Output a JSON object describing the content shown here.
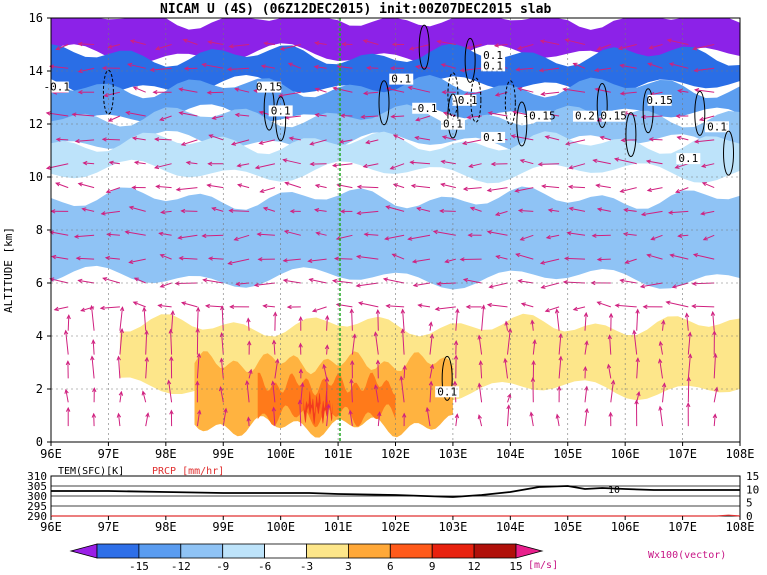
{
  "chart_data": [
    {
      "type": "heatmap",
      "title": "NICAM U (4S) (06Z12DEC2015) init:00Z07DEC2015 slab",
      "ylabel": "ALTITUDE [km]",
      "xlabel": "",
      "xlim": [
        96,
        108
      ],
      "ylim": [
        0,
        16
      ],
      "x_ticks": [
        "96E",
        "97E",
        "98E",
        "99E",
        "100E",
        "101E",
        "102E",
        "103E",
        "104E",
        "105E",
        "106E",
        "107E",
        "108E"
      ],
      "y_ticks": [
        "0",
        "2",
        "4",
        "6",
        "8",
        "10",
        "12",
        "14",
        "16"
      ],
      "grid": true,
      "reference_line_x": 101,
      "shading_bands": [
        {
          "z_top": 16.0,
          "z_bot": 14.6,
          "level": -15,
          "color": "#8c22e8"
        },
        {
          "z_top": 14.6,
          "z_bot": 13.4,
          "level": -12,
          "color": "#2a6ee6"
        },
        {
          "z_top": 13.4,
          "z_bot": 12.3,
          "level": -9,
          "color": "#5c9ef0"
        },
        {
          "z_top": 12.3,
          "z_bot": 11.3,
          "level": -6,
          "color": "#8fc3f5"
        },
        {
          "z_top": 11.3,
          "z_bot": 10.2,
          "level": -3,
          "color": "#bde3fa"
        },
        {
          "z_top": 9.2,
          "z_bot": 6.2,
          "level": -6,
          "color": "#8fc3f5"
        },
        {
          "z_top": 4.4,
          "z_bot": 2.0,
          "level": 3,
          "color": "#fde68a"
        },
        {
          "z_top": 3.0,
          "z_bot": 0.6,
          "level": 6,
          "color": "#ffb340"
        },
        {
          "z_top": 2.2,
          "z_bot": 1.0,
          "level": 9,
          "color": "#ff7a1a"
        },
        {
          "z_top": 1.5,
          "z_bot": 1.1,
          "level": 12,
          "color": "#f23a1e"
        }
      ],
      "contour_labels": [
        "-0.1",
        "0.15",
        "0.1",
        "0.1",
        "-0.1",
        "0.1",
        "-0.15",
        "-0.1",
        "0.1",
        "0.2",
        "0.15",
        "0.1",
        "0.1",
        "0.15",
        "0.1",
        "0.1",
        "0.1"
      ],
      "vector_label": "Wx100(vector)"
    },
    {
      "type": "line",
      "series": [
        {
          "name": "TEM(SFC)[K]",
          "color": "#000000",
          "x": [
            96,
            97,
            98,
            99,
            100,
            100.5,
            101,
            102,
            102.5,
            103,
            103.5,
            104,
            104.5,
            105,
            105.3,
            105.6,
            106,
            106.5,
            107,
            108
          ],
          "values": [
            302.5,
            302.5,
            302,
            301.5,
            301.5,
            301.5,
            301,
            300.5,
            300,
            299.5,
            300.5,
            302,
            304.5,
            305,
            303.5,
            304,
            303.5,
            303,
            303,
            303
          ]
        },
        {
          "name": "PRCP [mm/hr]",
          "color": "#e03030",
          "x": [
            96,
            100,
            104,
            107.6,
            107.8,
            108
          ],
          "values": [
            0,
            0,
            0,
            0,
            0.3,
            0
          ]
        }
      ],
      "xlim": [
        96,
        108
      ],
      "ylim_left": [
        290,
        310
      ],
      "ylim_right": [
        0,
        15
      ],
      "y_ticks_left": [
        "290",
        "295",
        "300",
        "305",
        "310"
      ],
      "y_ticks_right": [
        "0",
        "5",
        "10",
        "15"
      ],
      "annotation": "10",
      "x_ticks": [
        "96E",
        "97E",
        "98E",
        "99E",
        "100E",
        "101E",
        "102E",
        "103E",
        "104E",
        "105E",
        "106E",
        "107E",
        "108E"
      ]
    }
  ],
  "colorbar": {
    "labels": [
      "-15",
      "-12",
      "-9",
      "-6",
      "-3",
      "3",
      "6",
      "9",
      "12",
      "15"
    ],
    "unit": "[m/s]",
    "colors": [
      "#9a1fe6",
      "#2e6fe8",
      "#5a9cf0",
      "#8fc3f5",
      "#bde3fa",
      "#ffffff",
      "#fde68a",
      "#ffa838",
      "#ff5a1a",
      "#e8220f",
      "#b0100a",
      "#e8208c"
    ]
  }
}
